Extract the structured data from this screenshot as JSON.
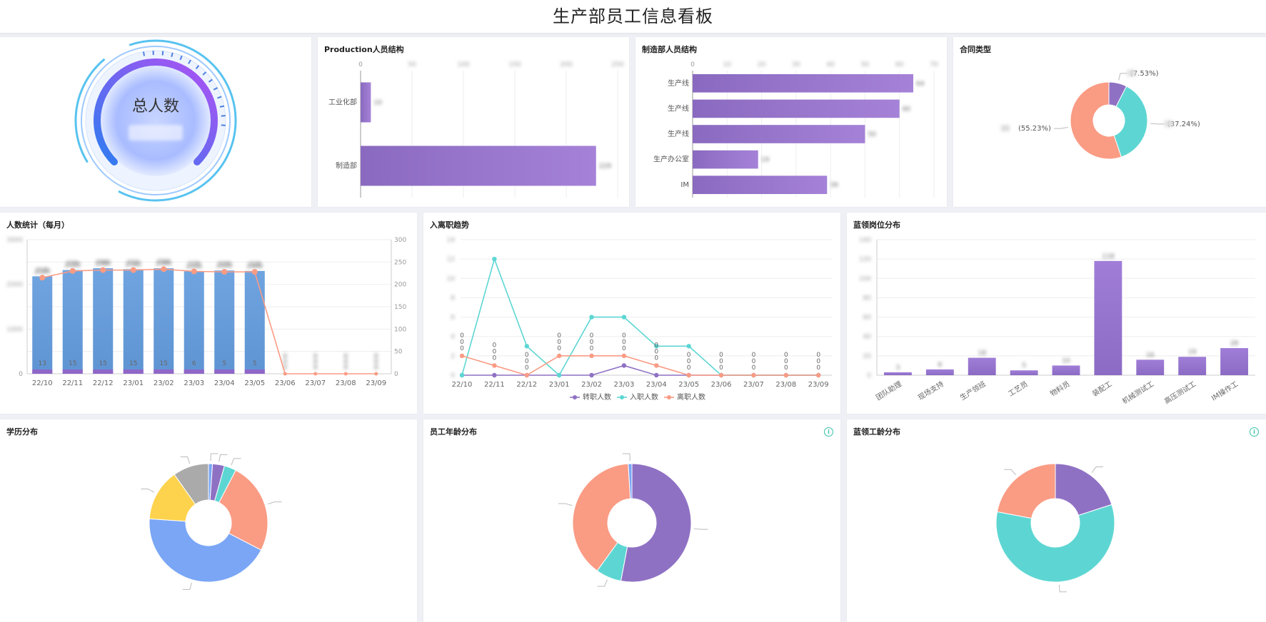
{
  "page": {
    "title": "生产部员工信息看板"
  },
  "colors": {
    "purple": "#8f71c4",
    "cyan": "#5dd6d3",
    "salmon": "#fa9b84",
    "blue": "#6d9fdb",
    "yellow": "#fdd24c",
    "gray": "#aaaaaa",
    "lightblue": "#7aa6f5"
  },
  "gauge": {
    "label": "总人数"
  },
  "panels": {
    "production_structure": {
      "title": "Production人员结构"
    },
    "manufacturing_structure": {
      "title": "制造部人员结构"
    },
    "contract_type": {
      "title": "合同类型"
    },
    "headcount_monthly": {
      "title": "人数统计（每月）"
    },
    "turnover_trend": {
      "title": "入离职趋势"
    },
    "bluecollar_positions": {
      "title": "蓝领岗位分布"
    },
    "education": {
      "title": "学历分布"
    },
    "age": {
      "title": "员工年龄分布"
    },
    "bluecollar_tenure": {
      "title": "蓝领工龄分布"
    }
  },
  "chart_data": [
    {
      "id": "production_structure",
      "type": "bar",
      "orientation": "horizontal",
      "title": "Production人员结构",
      "categories": [
        "工业化部",
        "制造部"
      ],
      "values": [
        10,
        229
      ],
      "xlim": [
        0,
        250
      ],
      "xticks": [
        "0",
        "50",
        "100",
        "150",
        "200",
        "250"
      ]
    },
    {
      "id": "manufacturing_structure",
      "type": "bar",
      "orientation": "horizontal",
      "title": "制造部人员结构",
      "categories": [
        "生产线",
        "生产线",
        "生产线",
        "生产办公室",
        "IM"
      ],
      "values": [
        64,
        60,
        50,
        19,
        39
      ],
      "xlim": [
        0,
        70
      ],
      "xticks": [
        "0",
        "10",
        "20",
        "30",
        "40",
        "50",
        "60",
        "70"
      ]
    },
    {
      "id": "contract_type",
      "type": "pie",
      "title": "合同类型",
      "slices": [
        {
          "value": 7.53,
          "label": "(7.53%)",
          "color": "#8f71c4"
        },
        {
          "value": 37.24,
          "label": "(37.24%)",
          "color": "#5dd6d3"
        },
        {
          "value": 55.23,
          "label": "(55.23%)",
          "color": "#fa9b84"
        }
      ]
    },
    {
      "id": "headcount_monthly",
      "type": "bar",
      "title": "人数统计（每月）",
      "categories": [
        "22/10",
        "22/11",
        "22/12",
        "23/01",
        "23/02",
        "23/03",
        "23/04",
        "23/05",
        "23/06",
        "23/07",
        "23/08",
        "23/09"
      ],
      "series": [
        {
          "values": [
            2180,
            2320,
            2360,
            2340,
            2360,
            2290,
            2310,
            2300,
            0,
            0,
            0,
            0
          ]
        },
        {
          "values": [
            13,
            15,
            15,
            15,
            15,
            6,
            5,
            5,
            0,
            0,
            0,
            0
          ]
        },
        {
          "values": [
            215,
            230,
            232,
            232,
            234,
            229,
            228,
            228,
            0,
            0,
            0,
            0
          ]
        }
      ],
      "ylim_left": [
        0,
        3000
      ],
      "ylim_right": [
        0,
        300
      ],
      "yticks_right": [
        "0",
        "50",
        "100",
        "150",
        "200",
        "250",
        "300"
      ],
      "yticks_left": [
        "0"
      ]
    },
    {
      "id": "turnover_trend",
      "type": "line",
      "title": "入离职趋势",
      "categories": [
        "22/10",
        "22/11",
        "22/12",
        "23/01",
        "23/02",
        "23/03",
        "23/04",
        "23/05",
        "23/06",
        "23/07",
        "23/08",
        "23/09"
      ],
      "series": [
        {
          "name": "转职人数",
          "color": "#8f71c4",
          "values": [
            0,
            0,
            0,
            0,
            0,
            1,
            0,
            0,
            0,
            0,
            0,
            0
          ]
        },
        {
          "name": "入职人数",
          "color": "#5dd6d3",
          "values": [
            0,
            12,
            3,
            0,
            6,
            6,
            3,
            3,
            0,
            0,
            0,
            0
          ]
        },
        {
          "name": "离职人数",
          "color": "#fa9b84",
          "values": [
            2,
            1,
            0,
            2,
            2,
            2,
            1,
            0,
            0,
            0,
            0,
            0
          ]
        }
      ],
      "ylim": [
        0,
        14
      ],
      "point_labels": [
        "0",
        "0",
        "0",
        "0",
        "0",
        "0",
        "0",
        "0",
        "0",
        "0",
        "0",
        "0"
      ]
    },
    {
      "id": "bluecollar_positions",
      "type": "bar",
      "title": "蓝领岗位分布",
      "categories": [
        "团队助理",
        "现场支持",
        "生产领班",
        "工艺员",
        "物料员",
        "装配工",
        "机械测试工",
        "高压测试工",
        "IM操作工"
      ],
      "values": [
        3,
        6,
        18,
        5,
        10,
        118,
        16,
        19,
        28
      ],
      "ylim": [
        0,
        140
      ]
    },
    {
      "id": "education",
      "type": "pie",
      "title": "学历分布",
      "slices": [
        {
          "value": 1,
          "color": "#7aa6f5"
        },
        {
          "value": 3,
          "color": "#8f71c4"
        },
        {
          "value": 3,
          "color": "#5dd6d3"
        },
        {
          "value": 23,
          "color": "#fa9b84"
        },
        {
          "value": 40,
          "color": "#7aa6f5"
        },
        {
          "value": 13,
          "color": "#fdd24c"
        },
        {
          "value": 9,
          "color": "#aaaaaa"
        }
      ]
    },
    {
      "id": "age",
      "type": "pie",
      "title": "员工年龄分布",
      "slices": [
        {
          "value": 53,
          "color": "#8f71c4"
        },
        {
          "value": 7,
          "color": "#5dd6d3"
        },
        {
          "value": 39,
          "color": "#fa9b84"
        },
        {
          "value": 1,
          "color": "#7aa6f5"
        }
      ]
    },
    {
      "id": "bluecollar_tenure",
      "type": "pie",
      "title": "蓝领工龄分布",
      "slices": [
        {
          "value": 20,
          "color": "#8f71c4"
        },
        {
          "value": 58,
          "color": "#5dd6d3"
        },
        {
          "value": 22,
          "color": "#fa9b84"
        }
      ]
    }
  ]
}
